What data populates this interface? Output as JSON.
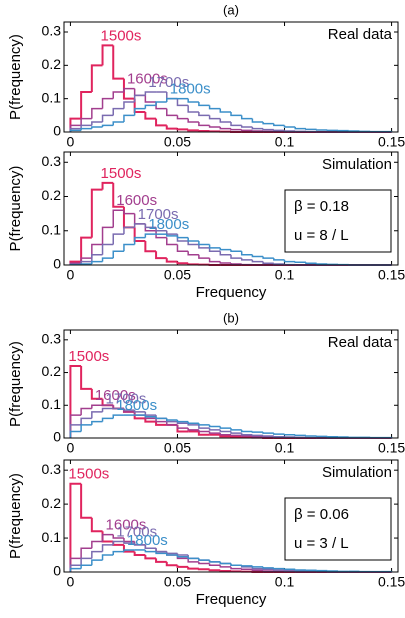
{
  "chart_data": [
    {
      "type": "histogram",
      "title": "(a)",
      "ylabel": "P(frequency)",
      "annotation": "Real data",
      "xlim": [
        -0.003,
        0.153
      ],
      "ylim": [
        0,
        0.33
      ],
      "xticks": [
        0,
        0.05,
        0.1,
        0.15
      ],
      "yticks": [
        0,
        0.1,
        0.2,
        0.3
      ],
      "bins": [
        0,
        0.005,
        0.01,
        0.015,
        0.02,
        0.025,
        0.03,
        0.035,
        0.04,
        0.045,
        0.05,
        0.055,
        0.06,
        0.065,
        0.07,
        0.075,
        0.08,
        0.085,
        0.09,
        0.095,
        0.1,
        0.105,
        0.11,
        0.115,
        0.12,
        0.125,
        0.13,
        0.135,
        0.14,
        0.145,
        0.15
      ],
      "series": [
        {
          "name": "1500s",
          "color": "#e0245e",
          "values": [
            0.04,
            0.12,
            0.2,
            0.26,
            0.16,
            0.1,
            0.06,
            0.04,
            0.02,
            0.01,
            0.008,
            0.005,
            0.003,
            0.002,
            0.001,
            0,
            0,
            0,
            0,
            0,
            0,
            0,
            0,
            0,
            0,
            0,
            0,
            0,
            0,
            0
          ]
        },
        {
          "name": "1600s",
          "color": "#a23e8e",
          "values": [
            0.02,
            0.04,
            0.07,
            0.1,
            0.12,
            0.13,
            0.11,
            0.09,
            0.07,
            0.05,
            0.04,
            0.03,
            0.02,
            0.015,
            0.01,
            0.007,
            0.005,
            0.003,
            0.002,
            0.001,
            0,
            0,
            0,
            0,
            0,
            0,
            0,
            0,
            0,
            0
          ]
        },
        {
          "name": "1700s",
          "color": "#7a6bb0",
          "values": [
            0.01,
            0.02,
            0.03,
            0.05,
            0.07,
            0.09,
            0.11,
            0.12,
            0.12,
            0.1,
            0.08,
            0.06,
            0.05,
            0.04,
            0.03,
            0.02,
            0.015,
            0.01,
            0.007,
            0.005,
            0.003,
            0.002,
            0.001,
            0,
            0,
            0,
            0,
            0,
            0,
            0
          ]
        },
        {
          "name": "1800s",
          "color": "#3b8fc9",
          "values": [
            0.005,
            0.01,
            0.015,
            0.02,
            0.03,
            0.05,
            0.07,
            0.08,
            0.09,
            0.1,
            0.1,
            0.09,
            0.08,
            0.07,
            0.06,
            0.05,
            0.04,
            0.03,
            0.025,
            0.02,
            0.015,
            0.01,
            0.008,
            0.006,
            0.005,
            0.004,
            0.003,
            0.002,
            0.001,
            0.001
          ]
        }
      ]
    },
    {
      "type": "histogram",
      "ylabel": "P(frequency)",
      "xlabel": "Frequency",
      "annotation": "Simulation",
      "annotation_box": [
        "β = 0.18",
        "u = 8 / L"
      ],
      "xlim": [
        -0.003,
        0.153
      ],
      "ylim": [
        0,
        0.33
      ],
      "xticks": [
        0,
        0.05,
        0.1,
        0.15
      ],
      "yticks": [
        0,
        0.1,
        0.2,
        0.3
      ],
      "bins": [
        0,
        0.005,
        0.01,
        0.015,
        0.02,
        0.025,
        0.03,
        0.035,
        0.04,
        0.045,
        0.05,
        0.055,
        0.06,
        0.065,
        0.07,
        0.075,
        0.08,
        0.085,
        0.09,
        0.095,
        0.1,
        0.105,
        0.11,
        0.115,
        0.12,
        0.125,
        0.13,
        0.135,
        0.14,
        0.145,
        0.15
      ],
      "series": [
        {
          "name": "1500s",
          "color": "#e0245e",
          "values": [
            0.01,
            0.08,
            0.22,
            0.24,
            0.17,
            0.11,
            0.07,
            0.04,
            0.02,
            0.01,
            0.005,
            0.002,
            0.001,
            0,
            0,
            0,
            0,
            0,
            0,
            0,
            0,
            0,
            0,
            0,
            0,
            0,
            0,
            0,
            0,
            0
          ]
        },
        {
          "name": "1600s",
          "color": "#a23e8e",
          "values": [
            0.005,
            0.02,
            0.06,
            0.11,
            0.16,
            0.15,
            0.12,
            0.1,
            0.08,
            0.06,
            0.04,
            0.03,
            0.02,
            0.01,
            0.006,
            0.003,
            0.001,
            0,
            0,
            0,
            0,
            0,
            0,
            0,
            0,
            0,
            0,
            0,
            0,
            0
          ]
        },
        {
          "name": "1700s",
          "color": "#7a6bb0",
          "values": [
            0.002,
            0.01,
            0.03,
            0.06,
            0.09,
            0.11,
            0.12,
            0.11,
            0.1,
            0.09,
            0.07,
            0.06,
            0.05,
            0.04,
            0.03,
            0.02,
            0.015,
            0.01,
            0.005,
            0.003,
            0.001,
            0,
            0,
            0,
            0,
            0,
            0,
            0,
            0,
            0
          ]
        },
        {
          "name": "1800s",
          "color": "#3b8fc9",
          "values": [
            0.001,
            0.003,
            0.01,
            0.02,
            0.04,
            0.06,
            0.08,
            0.09,
            0.09,
            0.085,
            0.08,
            0.07,
            0.06,
            0.05,
            0.045,
            0.04,
            0.03,
            0.025,
            0.02,
            0.015,
            0.01,
            0.008,
            0.005,
            0.003,
            0.002,
            0.001,
            0,
            0,
            0,
            0
          ]
        }
      ]
    },
    {
      "type": "histogram",
      "title": "(b)",
      "ylabel": "P(frequency)",
      "annotation": "Real data",
      "xlim": [
        -0.003,
        0.153
      ],
      "ylim": [
        0,
        0.33
      ],
      "xticks": [
        0,
        0.05,
        0.1,
        0.15
      ],
      "yticks": [
        0,
        0.1,
        0.2,
        0.3
      ],
      "bins": [
        0,
        0.005,
        0.01,
        0.015,
        0.02,
        0.025,
        0.03,
        0.035,
        0.04,
        0.045,
        0.05,
        0.055,
        0.06,
        0.065,
        0.07,
        0.075,
        0.08,
        0.085,
        0.09,
        0.095,
        0.1,
        0.105,
        0.11,
        0.115,
        0.12,
        0.125,
        0.13,
        0.135,
        0.14,
        0.145,
        0.15
      ],
      "series": [
        {
          "name": "1500s",
          "color": "#e0245e",
          "values": [
            0.22,
            0.15,
            0.12,
            0.1,
            0.09,
            0.08,
            0.06,
            0.05,
            0.04,
            0.04,
            0.02,
            0.02,
            0.01,
            0.01,
            0.005,
            0.003,
            0.002,
            0.001,
            0,
            0,
            0,
            0,
            0,
            0,
            0,
            0,
            0,
            0,
            0,
            0
          ]
        },
        {
          "name": "1600s",
          "color": "#a23e8e",
          "values": [
            0.07,
            0.09,
            0.1,
            0.1,
            0.09,
            0.08,
            0.07,
            0.06,
            0.05,
            0.04,
            0.03,
            0.025,
            0.02,
            0.015,
            0.01,
            0.008,
            0.006,
            0.004,
            0.003,
            0.002,
            0.001,
            0,
            0,
            0,
            0,
            0,
            0,
            0,
            0,
            0
          ]
        },
        {
          "name": "1700s",
          "color": "#7a6bb0",
          "values": [
            0.04,
            0.06,
            0.08,
            0.09,
            0.09,
            0.085,
            0.08,
            0.07,
            0.06,
            0.05,
            0.045,
            0.04,
            0.03,
            0.025,
            0.02,
            0.015,
            0.01,
            0.008,
            0.006,
            0.004,
            0.003,
            0.002,
            0.001,
            0,
            0,
            0,
            0,
            0,
            0,
            0
          ]
        },
        {
          "name": "1800s",
          "color": "#3b8fc9",
          "values": [
            0.02,
            0.04,
            0.05,
            0.06,
            0.07,
            0.07,
            0.07,
            0.065,
            0.06,
            0.055,
            0.05,
            0.045,
            0.04,
            0.035,
            0.03,
            0.025,
            0.02,
            0.018,
            0.015,
            0.012,
            0.01,
            0.008,
            0.006,
            0.005,
            0.004,
            0.003,
            0.002,
            0.002,
            0.001,
            0.001
          ]
        }
      ]
    },
    {
      "type": "histogram",
      "ylabel": "P(frequency)",
      "xlabel": "Frequency",
      "annotation": "Simulation",
      "annotation_box": [
        "β = 0.06",
        "u = 3 / L"
      ],
      "xlim": [
        -0.003,
        0.153
      ],
      "ylim": [
        0,
        0.33
      ],
      "xticks": [
        0,
        0.05,
        0.1,
        0.15
      ],
      "yticks": [
        0,
        0.1,
        0.2,
        0.3
      ],
      "bins": [
        0,
        0.005,
        0.01,
        0.015,
        0.02,
        0.025,
        0.03,
        0.035,
        0.04,
        0.045,
        0.05,
        0.055,
        0.06,
        0.065,
        0.07,
        0.075,
        0.08,
        0.085,
        0.09,
        0.095,
        0.1,
        0.105,
        0.11,
        0.115,
        0.12,
        0.125,
        0.13,
        0.135,
        0.14,
        0.145,
        0.15
      ],
      "series": [
        {
          "name": "1500s",
          "color": "#e0245e",
          "values": [
            0.26,
            0.16,
            0.12,
            0.09,
            0.08,
            0.06,
            0.05,
            0.04,
            0.03,
            0.02,
            0.015,
            0.01,
            0.008,
            0.005,
            0.003,
            0.002,
            0.001,
            0,
            0,
            0,
            0,
            0,
            0,
            0,
            0,
            0,
            0,
            0,
            0,
            0
          ]
        },
        {
          "name": "1600s",
          "color": "#a23e8e",
          "values": [
            0.04,
            0.07,
            0.09,
            0.11,
            0.1,
            0.09,
            0.08,
            0.07,
            0.06,
            0.05,
            0.04,
            0.03,
            0.025,
            0.02,
            0.015,
            0.01,
            0.008,
            0.005,
            0.003,
            0.002,
            0.001,
            0,
            0,
            0,
            0,
            0,
            0,
            0,
            0,
            0
          ]
        },
        {
          "name": "1700s",
          "color": "#7a6bb0",
          "values": [
            0.02,
            0.04,
            0.06,
            0.08,
            0.09,
            0.085,
            0.08,
            0.07,
            0.06,
            0.055,
            0.05,
            0.04,
            0.035,
            0.03,
            0.025,
            0.02,
            0.015,
            0.01,
            0.008,
            0.006,
            0.004,
            0.003,
            0.002,
            0.001,
            0,
            0,
            0,
            0,
            0,
            0
          ]
        },
        {
          "name": "1800s",
          "color": "#3b8fc9",
          "values": [
            0.01,
            0.02,
            0.035,
            0.05,
            0.06,
            0.065,
            0.065,
            0.06,
            0.055,
            0.05,
            0.045,
            0.04,
            0.035,
            0.03,
            0.025,
            0.02,
            0.018,
            0.015,
            0.012,
            0.01,
            0.008,
            0.006,
            0.005,
            0.004,
            0.003,
            0.002,
            0.002,
            0.001,
            0.001,
            0.001
          ]
        }
      ]
    }
  ]
}
